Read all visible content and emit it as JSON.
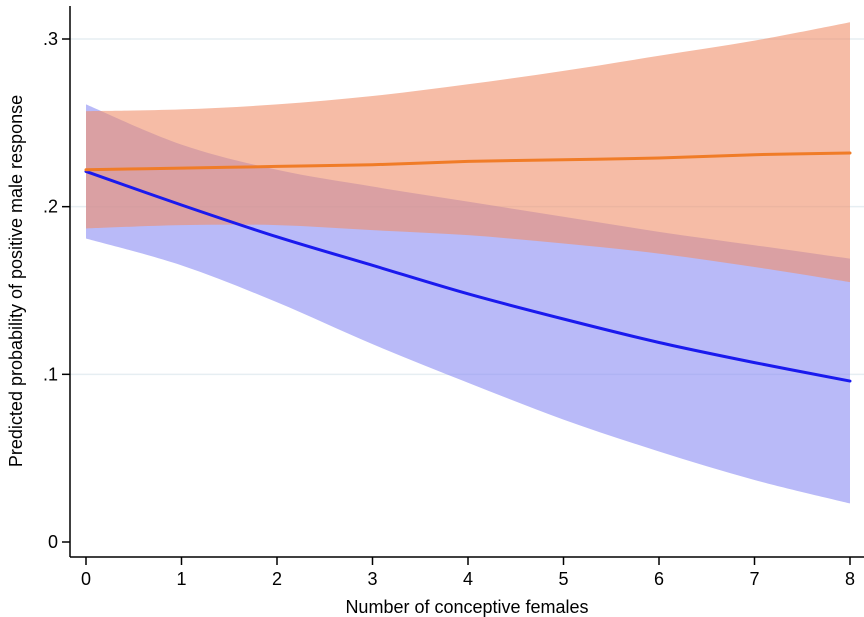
{
  "chart_data": {
    "type": "line",
    "title": "",
    "xlabel": "Number of conceptive females",
    "ylabel": "Predicted probability of positive male response",
    "xlim": [
      0,
      8
    ],
    "ylim": [
      0,
      0.3
    ],
    "x_ticks": [
      0,
      1,
      2,
      3,
      4,
      5,
      6,
      7,
      8
    ],
    "x_tick_labels": [
      "0",
      "1",
      "2",
      "3",
      "4",
      "5",
      "6",
      "7",
      "8"
    ],
    "y_ticks": [
      0,
      0.1,
      0.2,
      0.3
    ],
    "y_tick_labels": [
      "0",
      ".1",
      ".2",
      ".3"
    ],
    "grid": "horizontal",
    "legend": "none",
    "x": [
      0,
      1,
      2,
      3,
      4,
      5,
      6,
      7,
      8
    ],
    "series": [
      {
        "color": "#1a1aee",
        "band_color": "#8a8cf3",
        "values": [
          0.221,
          0.201,
          0.182,
          0.165,
          0.148,
          0.133,
          0.119,
          0.107,
          0.096
        ],
        "lower": [
          0.181,
          0.165,
          0.143,
          0.118,
          0.095,
          0.073,
          0.054,
          0.037,
          0.023
        ],
        "upper": [
          0.261,
          0.237,
          0.222,
          0.212,
          0.203,
          0.194,
          0.185,
          0.177,
          0.169
        ]
      },
      {
        "color": "#f07c28",
        "band_color": "#f08f6a",
        "values": [
          0.222,
          0.223,
          0.224,
          0.225,
          0.227,
          0.228,
          0.229,
          0.231,
          0.232
        ],
        "lower": [
          0.187,
          0.189,
          0.189,
          0.186,
          0.183,
          0.178,
          0.172,
          0.164,
          0.155
        ],
        "upper": [
          0.257,
          0.258,
          0.261,
          0.266,
          0.273,
          0.281,
          0.29,
          0.299,
          0.31
        ]
      }
    ]
  }
}
